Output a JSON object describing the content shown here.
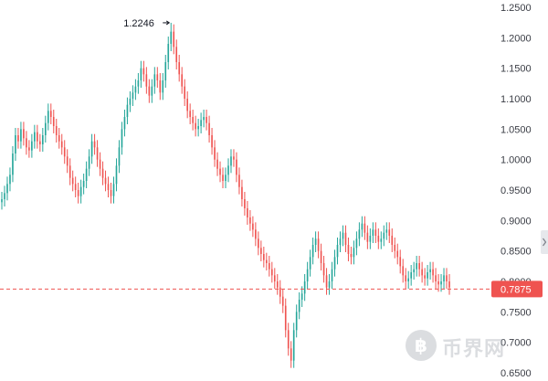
{
  "chart_data": {
    "type": "candlestick",
    "series": [
      {
        "values": [
          0.935,
          0.945,
          0.96,
          0.975,
          1.01,
          1.04,
          1.03,
          1.05,
          1.035,
          1.02,
          1.015,
          1.03,
          1.045,
          1.03,
          1.025,
          1.04,
          1.06,
          1.08,
          1.07,
          1.055,
          1.04,
          1.03,
          1.02,
          1.005,
          0.99,
          0.97,
          0.96,
          0.95,
          0.94,
          0.955,
          0.965,
          0.985,
          1.005,
          1.03,
          1.02,
          1.0,
          0.985,
          0.97,
          0.96,
          0.95,
          0.94,
          0.96,
          0.99,
          1.02,
          1.05,
          1.07,
          1.09,
          1.1,
          1.11,
          1.12,
          1.13,
          1.15,
          1.14,
          1.12,
          1.105,
          1.12,
          1.14,
          1.13,
          1.11,
          1.13,
          1.16,
          1.19,
          1.21,
          1.185,
          1.16,
          1.14,
          1.12,
          1.1,
          1.08,
          1.07,
          1.06,
          1.05,
          1.055,
          1.065,
          1.07,
          1.06,
          1.04,
          1.02,
          1.0,
          0.985,
          0.975,
          0.965,
          0.975,
          0.99,
          1.005,
          1.0,
          0.975,
          0.955,
          0.935,
          0.92,
          0.905,
          0.895,
          0.885,
          0.87,
          0.855,
          0.845,
          0.835,
          0.83,
          0.82,
          0.81,
          0.8,
          0.79,
          0.775,
          0.76,
          0.72,
          0.69,
          0.67,
          0.72,
          0.75,
          0.77,
          0.78,
          0.8,
          0.82,
          0.84,
          0.86,
          0.87,
          0.85,
          0.83,
          0.81,
          0.79,
          0.8,
          0.82,
          0.84,
          0.86,
          0.87,
          0.88,
          0.86,
          0.845,
          0.84,
          0.855,
          0.87,
          0.885,
          0.895,
          0.88,
          0.865,
          0.875,
          0.885,
          0.875,
          0.865,
          0.87,
          0.88,
          0.885,
          0.875,
          0.86,
          0.85,
          0.84,
          0.825,
          0.81,
          0.8,
          0.805,
          0.815,
          0.82,
          0.83,
          0.82,
          0.81,
          0.805,
          0.815,
          0.82,
          0.81,
          0.8,
          0.795,
          0.8,
          0.81,
          0.8,
          0.79
        ]
      }
    ],
    "ylim": [
      0.65,
      1.25
    ],
    "y_ticks": [
      "0.6500",
      "0.7000",
      "0.7500",
      "0.8000",
      "0.8500",
      "0.9000",
      "0.9500",
      "1.0000",
      "1.0500",
      "1.1000",
      "1.1500",
      "1.2000",
      "1.2500"
    ],
    "high_label": "1.2246",
    "high_value": 1.2246,
    "current_price": 0.7875,
    "current_price_label": "0.7875",
    "grid": false,
    "colors": {
      "up": "#26a69a",
      "down": "#ef5350",
      "price_line": "#ef5350",
      "axis_text": "#3a3d45"
    }
  },
  "watermark": {
    "symbol": "฿",
    "text": "币界网"
  }
}
